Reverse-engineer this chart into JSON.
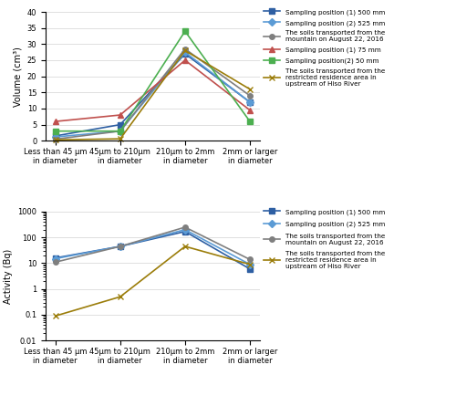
{
  "x_labels": [
    "Less than 45 μm\nin diameter",
    "45μm to 210μm\nin diameter",
    "210μm to 2mm\nin diameter",
    "2mm or larger\nin diameter"
  ],
  "volume_series": [
    {
      "label": "Sampling position (1) 500 mm",
      "color": "#2E5FA3",
      "marker": "s",
      "values": [
        1.5,
        5.0,
        27.0,
        12.0
      ]
    },
    {
      "label": "Sampling position (2) 525 mm",
      "color": "#5B9BD5",
      "marker": "D",
      "values": [
        1.2,
        3.0,
        27.5,
        12.0
      ]
    },
    {
      "label": "The soils transported from the\nmountain on August 22, 2016",
      "color": "#7F7F7F",
      "marker": "o",
      "values": [
        0.5,
        3.0,
        28.5,
        14.0
      ]
    },
    {
      "label": "Sampling position (1) 75 mm",
      "color": "#C0504D",
      "marker": "^",
      "values": [
        6.0,
        8.0,
        25.0,
        9.5
      ]
    },
    {
      "label": "Sampling position(2) 50 mm",
      "color": "#4CAF50",
      "marker": "s",
      "values": [
        3.0,
        3.0,
        34.0,
        6.0
      ]
    },
    {
      "label": "The soils transported from the\nrestricted residence area in\nupstream of Hiso River",
      "color": "#9B7D0A",
      "marker": "x",
      "values": [
        0.3,
        0.6,
        28.0,
        16.0
      ]
    }
  ],
  "activity_series": [
    {
      "label": "Sampling position (1) 500 mm",
      "color": "#2E5FA3",
      "marker": "s",
      "values": [
        16.0,
        45.0,
        170.0,
        6.0
      ]
    },
    {
      "label": "Sampling position (2) 525 mm",
      "color": "#5B9BD5",
      "marker": "D",
      "values": [
        15.0,
        45.0,
        200.0,
        9.0
      ]
    },
    {
      "label": "The soils transported from the\nmountain on August 22, 2016",
      "color": "#7F7F7F",
      "marker": "o",
      "values": [
        11.0,
        45.0,
        250.0,
        14.0
      ]
    },
    {
      "label": "The soils transported from the\nrestricted residence area in\nupstream of Hiso River",
      "color": "#9B7D0A",
      "marker": "x",
      "values": [
        0.09,
        0.5,
        45.0,
        9.0
      ]
    }
  ],
  "volume_ylim": [
    0,
    40
  ],
  "volume_yticks": [
    0,
    5,
    10,
    15,
    20,
    25,
    30,
    35,
    40
  ],
  "activity_ylim": [
    0.01,
    1000
  ],
  "activity_yticks": [
    0.01,
    0.1,
    1,
    10,
    100,
    1000
  ],
  "volume_ylabel": "Volume (cm³)",
  "activity_ylabel": "Activity (Bq)",
  "marker_size": 4,
  "line_width": 1.2
}
